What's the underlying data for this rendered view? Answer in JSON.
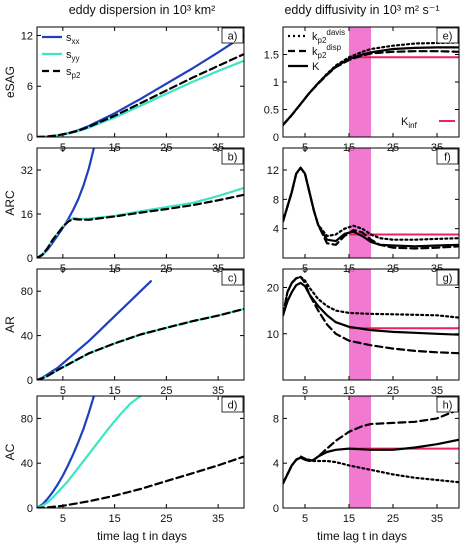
{
  "figure": {
    "left_title": "eddy dispersion in 10³ km²",
    "right_title": "eddy diffusivity in 10³ m² s⁻¹",
    "xlabel": "time lag t in days"
  },
  "colors": {
    "s_xx": "#1f3fbf",
    "s_yy": "#3de6c2",
    "s_p2": "#000000",
    "k_inf": "#e8245a",
    "shade": "#f062c8"
  },
  "chart_data": [
    {
      "type": "line",
      "panel": "a)",
      "ylabel": "eSAG",
      "xlim": [
        0,
        40
      ],
      "ylim": [
        0,
        13
      ],
      "xticks": [
        5,
        15,
        25,
        35
      ],
      "yticks": [
        0,
        6,
        12
      ],
      "legend": {
        "position": "top-left",
        "entries": [
          "s_xx",
          "s_yy",
          "s_p2"
        ]
      },
      "series": [
        {
          "name": "s_xx",
          "style": "solid",
          "color": "#1f3fbf",
          "x": [
            0,
            2,
            4,
            6,
            8,
            10,
            15,
            20,
            25,
            30,
            35,
            40
          ],
          "y": [
            0,
            0.05,
            0.2,
            0.45,
            0.8,
            1.3,
            2.8,
            4.5,
            6.3,
            8.1,
            10.0,
            12.0
          ]
        },
        {
          "name": "s_yy",
          "style": "solid",
          "color": "#3de6c2",
          "x": [
            0,
            2,
            4,
            6,
            8,
            10,
            15,
            20,
            25,
            30,
            35,
            40
          ],
          "y": [
            0,
            0.05,
            0.18,
            0.4,
            0.7,
            1.1,
            2.3,
            3.7,
            5.1,
            6.5,
            7.8,
            9.0
          ]
        },
        {
          "name": "s_p2",
          "style": "dashed",
          "color": "#000000",
          "x": [
            0,
            2,
            4,
            6,
            8,
            10,
            15,
            20,
            25,
            30,
            35,
            40
          ],
          "y": [
            0,
            0.05,
            0.2,
            0.42,
            0.75,
            1.2,
            2.5,
            4.0,
            5.5,
            7.0,
            8.4,
            9.8
          ]
        }
      ]
    },
    {
      "type": "line",
      "panel": "b)",
      "ylabel": "ARC",
      "xlim": [
        0,
        40
      ],
      "ylim": [
        0,
        40
      ],
      "xticks": [
        5,
        15,
        25,
        35
      ],
      "yticks": [
        0,
        16,
        32
      ],
      "series": [
        {
          "name": "s_xx",
          "style": "solid",
          "color": "#1f3fbf",
          "x": [
            0,
            1,
            2,
            3,
            4,
            5,
            6,
            7,
            8,
            9,
            10,
            11
          ],
          "y": [
            0,
            1,
            3,
            5.5,
            8.2,
            11,
            14,
            17.5,
            21.5,
            26.5,
            32.5,
            40
          ]
        },
        {
          "name": "s_yy",
          "style": "solid",
          "color": "#3de6c2",
          "x": [
            0,
            1,
            2,
            3,
            4,
            5,
            6,
            7,
            8,
            10,
            12,
            15,
            20,
            25,
            30,
            35,
            40
          ],
          "y": [
            0,
            1.2,
            3.5,
            6.5,
            9,
            11.5,
            13.5,
            14.5,
            14.3,
            14.2,
            14.7,
            15.3,
            17,
            18.5,
            20,
            22.5,
            25.5
          ]
        },
        {
          "name": "s_p2",
          "style": "dashed",
          "color": "#000000",
          "x": [
            0,
            1,
            2,
            3,
            4,
            5,
            6,
            7,
            8,
            10,
            12,
            15,
            20,
            25,
            30,
            35,
            40
          ],
          "y": [
            0,
            1.2,
            3.5,
            6.5,
            9,
            11.3,
            13.2,
            14.2,
            14,
            13.9,
            14.4,
            15.1,
            16.5,
            17.8,
            19.2,
            21,
            23
          ]
        }
      ]
    },
    {
      "type": "line",
      "panel": "c)",
      "ylabel": "AR",
      "xlim": [
        0,
        40
      ],
      "ylim": [
        0,
        100
      ],
      "xticks": [
        5,
        15,
        25,
        35
      ],
      "yticks": [
        0,
        40,
        80
      ],
      "series": [
        {
          "name": "s_xx",
          "style": "solid",
          "color": "#1f3fbf",
          "x": [
            0,
            1,
            2,
            4,
            6,
            8,
            10,
            12,
            14,
            16,
            18,
            20,
            22
          ],
          "y": [
            0,
            2,
            5,
            11,
            19,
            27,
            35,
            44,
            53,
            62,
            71,
            80,
            89
          ]
        },
        {
          "name": "s_yy",
          "style": "solid",
          "color": "#3de6c2",
          "x": [
            0,
            1,
            2,
            4,
            6,
            8,
            10,
            15,
            20,
            25,
            30,
            35,
            40
          ],
          "y": [
            0,
            1.5,
            3.5,
            9,
            14,
            19,
            24,
            33,
            41,
            47,
            53,
            58,
            64
          ]
        },
        {
          "name": "s_p2",
          "style": "dashed",
          "color": "#000000",
          "x": [
            0,
            1,
            2,
            4,
            6,
            8,
            10,
            15,
            20,
            25,
            30,
            35,
            40
          ],
          "y": [
            0,
            1.5,
            3.5,
            9,
            14,
            19,
            24,
            33,
            41,
            47,
            53,
            58,
            64
          ]
        }
      ]
    },
    {
      "type": "line",
      "panel": "d)",
      "ylabel": "AC",
      "xlim": [
        0,
        40
      ],
      "ylim": [
        0,
        100
      ],
      "xticks": [
        5,
        15,
        25,
        35
      ],
      "yticks": [
        0,
        40,
        80
      ],
      "series": [
        {
          "name": "s_xx",
          "style": "solid",
          "color": "#1f3fbf",
          "x": [
            0,
            1,
            2,
            3,
            4,
            5,
            6,
            7,
            8,
            9,
            10,
            11
          ],
          "y": [
            0,
            3,
            8,
            14,
            21,
            29,
            38,
            48,
            59,
            71,
            85,
            100
          ]
        },
        {
          "name": "s_yy",
          "style": "solid",
          "color": "#3de6c2",
          "x": [
            0,
            1,
            2,
            3,
            4,
            6,
            8,
            10,
            12,
            14,
            16,
            18,
            20
          ],
          "y": [
            0,
            2,
            5,
            9,
            14,
            24,
            36,
            48,
            60,
            72,
            83,
            93,
            100
          ]
        },
        {
          "name": "s_p2",
          "style": "dashed",
          "color": "#000000",
          "x": [
            0,
            2,
            5,
            10,
            15,
            20,
            25,
            30,
            35,
            40
          ],
          "y": [
            0,
            0.5,
            2,
            6,
            11,
            17,
            24,
            31,
            38,
            46
          ]
        }
      ]
    },
    {
      "type": "line",
      "panel": "e)",
      "xlim": [
        0,
        40
      ],
      "ylim": [
        0,
        2
      ],
      "xticks": [
        5,
        15,
        25,
        35
      ],
      "yticks": [
        0,
        0.5,
        1,
        1.5
      ],
      "shade": [
        15,
        20
      ],
      "legend": {
        "position": "top-left",
        "entries": [
          "k_p2^davis",
          "k_p2^disp",
          "K",
          "K_inf"
        ]
      },
      "k_inf": {
        "value": 1.45,
        "x": [
          15,
          40
        ],
        "label": "K_inf"
      },
      "series": [
        {
          "name": "k_p2^davis",
          "style": "dotted",
          "color": "#000000",
          "x": [
            0,
            2,
            4,
            6,
            8,
            10,
            12,
            15,
            18,
            20,
            25,
            30,
            35,
            40
          ],
          "y": [
            0.22,
            0.4,
            0.6,
            0.8,
            0.98,
            1.15,
            1.3,
            1.45,
            1.55,
            1.6,
            1.66,
            1.7,
            1.71,
            1.72
          ]
        },
        {
          "name": "k_p2^disp",
          "style": "dashed",
          "color": "#000000",
          "x": [
            0,
            2,
            4,
            6,
            8,
            10,
            12,
            15,
            18,
            20,
            25,
            30,
            35,
            40
          ],
          "y": [
            0.22,
            0.4,
            0.6,
            0.8,
            0.97,
            1.13,
            1.27,
            1.4,
            1.48,
            1.52,
            1.55,
            1.56,
            1.56,
            1.55
          ]
        },
        {
          "name": "K",
          "style": "solid",
          "color": "#000000",
          "x": [
            0,
            2,
            4,
            6,
            8,
            10,
            12,
            15,
            18,
            20,
            25,
            30,
            35,
            40
          ],
          "y": [
            0.22,
            0.4,
            0.6,
            0.8,
            0.98,
            1.14,
            1.28,
            1.42,
            1.5,
            1.54,
            1.6,
            1.62,
            1.63,
            1.63
          ]
        }
      ]
    },
    {
      "type": "line",
      "panel": "f)",
      "xlim": [
        0,
        40
      ],
      "ylim": [
        0,
        15
      ],
      "xticks": [
        5,
        15,
        25,
        35
      ],
      "yticks": [
        4,
        8,
        12
      ],
      "shade": [
        15,
        20
      ],
      "k_inf": {
        "value": 3.2,
        "x": [
          15,
          40
        ]
      },
      "series": [
        {
          "name": "k_p2^davis",
          "style": "dotted",
          "color": "#000000",
          "x": [
            0,
            2,
            3,
            4,
            5,
            6,
            7,
            8,
            10,
            12,
            14,
            16,
            18,
            20,
            22,
            25,
            30,
            35,
            40
          ],
          "y": [
            5,
            9,
            11.5,
            12.3,
            11.5,
            9,
            6.5,
            4.5,
            3,
            3.2,
            4.0,
            4.4,
            4.0,
            3.2,
            2.7,
            2.5,
            2.5,
            2.6,
            2.7
          ]
        },
        {
          "name": "k_p2^disp",
          "style": "dashed",
          "color": "#000000",
          "x": [
            0,
            2,
            3,
            4,
            5,
            6,
            7,
            8,
            10,
            12,
            14,
            16,
            18,
            20,
            22,
            25,
            30,
            35,
            40
          ],
          "y": [
            5,
            9,
            11.5,
            12.3,
            11.5,
            9,
            6.5,
            4.5,
            2.0,
            1.8,
            3.0,
            3.8,
            3.5,
            2.5,
            1.8,
            1.4,
            1.3,
            1.4,
            1.6
          ]
        },
        {
          "name": "K",
          "style": "solid",
          "color": "#000000",
          "x": [
            0,
            2,
            3,
            4,
            5,
            6,
            7,
            8,
            10,
            12,
            14,
            16,
            18,
            20,
            22,
            25,
            30,
            35,
            40
          ],
          "y": [
            5,
            9,
            11.5,
            12.3,
            11.5,
            9,
            6.5,
            4.5,
            2.5,
            2.3,
            3.3,
            3.6,
            3.0,
            2.2,
            1.8,
            1.7,
            1.6,
            1.7,
            1.8
          ]
        }
      ]
    },
    {
      "type": "line",
      "panel": "g)",
      "xlim": [
        0,
        40
      ],
      "ylim": [
        0,
        24
      ],
      "xticks": [
        5,
        15,
        25,
        35
      ],
      "yticks": [
        10,
        20
      ],
      "shade": [
        15,
        20
      ],
      "k_inf": {
        "value": 11.2,
        "x": [
          15,
          40
        ]
      },
      "series": [
        {
          "name": "k_p2^davis",
          "style": "dotted",
          "color": "#000000",
          "x": [
            0,
            1,
            2,
            3,
            4,
            5,
            6,
            8,
            10,
            12,
            15,
            20,
            25,
            30,
            35,
            40
          ],
          "y": [
            14,
            19,
            21,
            22,
            22.3,
            21.5,
            20,
            17.5,
            16,
            15,
            14.5,
            14.3,
            14.2,
            14.1,
            14,
            13.5
          ]
        },
        {
          "name": "k_p2^disp",
          "style": "dashed",
          "color": "#000000",
          "x": [
            0,
            1,
            2,
            3,
            4,
            5,
            6,
            8,
            10,
            12,
            15,
            20,
            25,
            30,
            35,
            40
          ],
          "y": [
            14,
            19,
            21,
            22,
            22.3,
            21,
            18.5,
            15,
            12,
            10,
            8.5,
            7.5,
            6.8,
            6.3,
            6,
            5.8
          ]
        },
        {
          "name": "K",
          "style": "solid",
          "color": "#000000",
          "x": [
            0,
            1,
            2,
            3,
            4,
            5,
            6,
            8,
            10,
            12,
            15,
            20,
            25,
            30,
            35,
            40
          ],
          "y": [
            14,
            17,
            19,
            20.5,
            21,
            20.3,
            18.5,
            16,
            14,
            12.5,
            11.5,
            10.8,
            10.4,
            10.2,
            10,
            9.8
          ]
        }
      ]
    },
    {
      "type": "line",
      "panel": "h)",
      "xlim": [
        0,
        40
      ],
      "ylim": [
        0,
        10
      ],
      "xticks": [
        5,
        15,
        25,
        35
      ],
      "yticks": [
        0,
        4,
        8
      ],
      "shade": [
        15,
        20
      ],
      "k_inf": {
        "value": 5.3,
        "x": [
          15,
          40
        ]
      },
      "series": [
        {
          "name": "k_p2^davis",
          "style": "dotted",
          "color": "#000000",
          "x": [
            0,
            1,
            2,
            3,
            4,
            5,
            6,
            7,
            8,
            10,
            12,
            15,
            20,
            25,
            30,
            35,
            40
          ],
          "y": [
            2.2,
            3,
            3.8,
            4.3,
            4.5,
            4.4,
            4.3,
            4.2,
            4.2,
            4.2,
            4.1,
            3.8,
            3.4,
            3.0,
            2.7,
            2.5,
            2.3
          ]
        },
        {
          "name": "k_p2^disp",
          "style": "dashed",
          "color": "#000000",
          "x": [
            0,
            1,
            2,
            3,
            4,
            5,
            6,
            7,
            8,
            10,
            12,
            15,
            18,
            20,
            25,
            30,
            35,
            40
          ],
          "y": [
            2.2,
            3,
            3.8,
            4.3,
            4.6,
            4.4,
            4.2,
            4.3,
            4.6,
            5.3,
            6.0,
            6.8,
            7.3,
            7.5,
            7.6,
            7.7,
            8.0,
            8.8
          ]
        },
        {
          "name": "K",
          "style": "solid",
          "color": "#000000",
          "x": [
            0,
            1,
            2,
            3,
            4,
            5,
            6,
            7,
            8,
            10,
            12,
            15,
            20,
            25,
            30,
            35,
            40
          ],
          "y": [
            2.2,
            3,
            3.8,
            4.3,
            4.5,
            4.3,
            4.2,
            4.3,
            4.6,
            5.0,
            5.2,
            5.3,
            5.2,
            5.2,
            5.4,
            5.7,
            6.1
          ]
        }
      ]
    }
  ]
}
